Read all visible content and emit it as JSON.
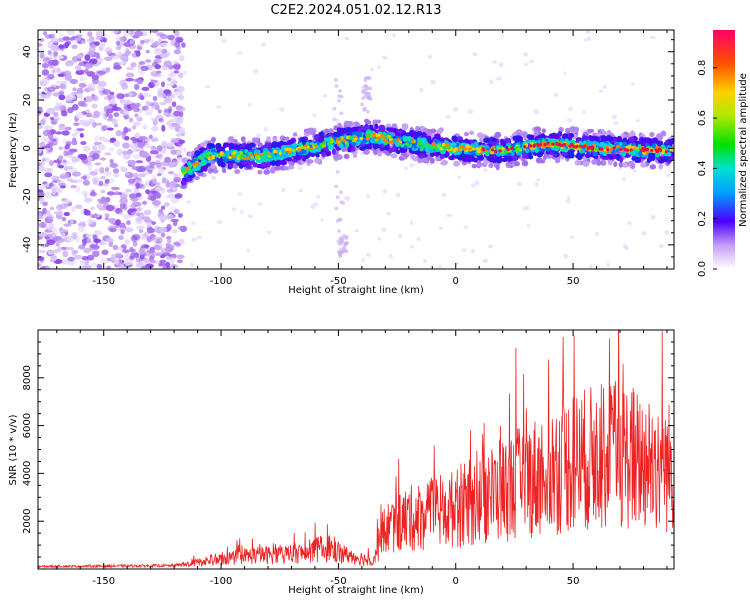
{
  "title": "C2E2.2024.051.02.12.R13",
  "colorbar": {
    "label": "Normalized spectral amplitude",
    "ticks": [
      "0.0",
      "0.2",
      "0.4",
      "0.6",
      "0.8"
    ],
    "tick_values": [
      0.0,
      0.2,
      0.4,
      0.6,
      0.8
    ],
    "range": [
      0,
      0.95
    ]
  },
  "chart_data": [
    {
      "type": "heatmap",
      "xlabel": "Height of straight line (km)",
      "ylabel": "Frequency (Hz)",
      "xlim": [
        -178,
        93
      ],
      "ylim": [
        -50,
        49
      ],
      "xticks": [
        -150,
        -100,
        -50,
        0,
        50
      ],
      "yticks": [
        40,
        20,
        0,
        -20,
        -40
      ],
      "noise_region_x": [
        -178,
        -116
      ],
      "signal_band": [
        {
          "x": -116,
          "y": -10
        },
        {
          "x": -105,
          "y": -3
        },
        {
          "x": -80,
          "y": -3
        },
        {
          "x": -60,
          "y": 1
        },
        {
          "x": -50,
          "y": 3
        },
        {
          "x": -35,
          "y": 5
        },
        {
          "x": -20,
          "y": 2
        },
        {
          "x": 0,
          "y": 0
        },
        {
          "x": 20,
          "y": -1
        },
        {
          "x": 40,
          "y": 2
        },
        {
          "x": 60,
          "y": 0
        },
        {
          "x": 93,
          "y": -1
        }
      ]
    },
    {
      "type": "line",
      "xlabel": "Height of straight line (km)",
      "ylabel": "SNR (10 * v/v)",
      "xlim": [
        -178,
        93
      ],
      "ylim": [
        0,
        10000
      ],
      "xticks": [
        -150,
        -100,
        -50,
        0,
        50
      ],
      "yticks": [
        2000,
        4000,
        6000,
        8000
      ],
      "series": [
        {
          "color": "#ee2222",
          "envelope": [
            {
              "x": -178,
              "y": 150
            },
            {
              "x": -120,
              "y": 200
            },
            {
              "x": -110,
              "y": 450
            },
            {
              "x": -90,
              "y": 900
            },
            {
              "x": -65,
              "y": 1100
            },
            {
              "x": -55,
              "y": 1500
            },
            {
              "x": -45,
              "y": 900
            },
            {
              "x": -35,
              "y": 600
            },
            {
              "x": -30,
              "y": 2800
            },
            {
              "x": -20,
              "y": 3500
            },
            {
              "x": 0,
              "y": 4200
            },
            {
              "x": 20,
              "y": 5500
            },
            {
              "x": 35,
              "y": 6500
            },
            {
              "x": 50,
              "y": 7500
            },
            {
              "x": 70,
              "y": 8000
            },
            {
              "x": 93,
              "y": 7000
            }
          ]
        }
      ]
    }
  ]
}
